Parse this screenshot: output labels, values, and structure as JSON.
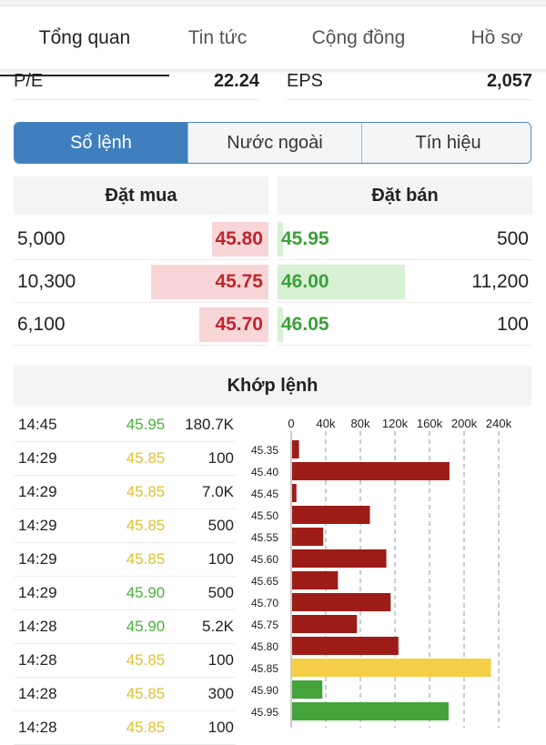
{
  "tabs": [
    {
      "label": "Tổng quan",
      "active": true
    },
    {
      "label": "Tin tức",
      "active": false
    },
    {
      "label": "Cộng đồng",
      "active": false
    },
    {
      "label": "Hồ sơ",
      "active": false
    }
  ],
  "metrics": [
    {
      "label": "P/E",
      "value": "22.24"
    },
    {
      "label": "EPS",
      "value": "2,057"
    }
  ],
  "segments": [
    {
      "label": "Sổ lệnh",
      "active": true
    },
    {
      "label": "Nước ngoài",
      "active": false
    },
    {
      "label": "Tín hiệu",
      "active": false
    }
  ],
  "orderbook": {
    "buy_header": "Đặt mua",
    "sell_header": "Đặt bán",
    "rows": [
      {
        "buy_volume": "5,000",
        "buy_price": "45.80",
        "sell_price": "45.95",
        "sell_volume": "500",
        "buy_volume_num": 5000,
        "sell_volume_num": 500
      },
      {
        "buy_volume": "10,300",
        "buy_price": "45.75",
        "sell_price": "46.00",
        "sell_volume": "11,200",
        "buy_volume_num": 10300,
        "sell_volume_num": 11200
      },
      {
        "buy_volume": "6,100",
        "buy_price": "45.70",
        "sell_price": "46.05",
        "sell_volume": "100",
        "buy_volume_num": 6100,
        "sell_volume_num": 100
      }
    ]
  },
  "trades": {
    "title": "Khớp lệnh",
    "rows": [
      {
        "time": "14:45",
        "price": "45.95",
        "volume": "180.7K",
        "color": "#4caf3d"
      },
      {
        "time": "14:29",
        "price": "45.85",
        "volume": "100",
        "color": "#e0c030"
      },
      {
        "time": "14:29",
        "price": "45.85",
        "volume": "7.0K",
        "color": "#e0c030"
      },
      {
        "time": "14:29",
        "price": "45.85",
        "volume": "500",
        "color": "#e0c030"
      },
      {
        "time": "14:29",
        "price": "45.85",
        "volume": "100",
        "color": "#e0c030"
      },
      {
        "time": "14:29",
        "price": "45.90",
        "volume": "500",
        "color": "#4caf3d"
      },
      {
        "time": "14:28",
        "price": "45.90",
        "volume": "5.2K",
        "color": "#4caf3d"
      },
      {
        "time": "14:28",
        "price": "45.85",
        "volume": "100",
        "color": "#e0c030"
      },
      {
        "time": "14:28",
        "price": "45.85",
        "volume": "300",
        "color": "#e0c030"
      },
      {
        "time": "14:28",
        "price": "45.85",
        "volume": "100",
        "color": "#e0c030"
      }
    ]
  },
  "colors": {
    "buy": "#c0262d",
    "sell": "#3ba03a",
    "bar_down": "#9e1c17",
    "bar_ref": "#f4cf45",
    "bar_up": "#44a33a",
    "accent": "#3f7fbe"
  },
  "chart_data": {
    "type": "bar",
    "orientation": "horizontal",
    "title": "",
    "xlabel": "",
    "ylabel": "",
    "xlim": [
      0,
      240000
    ],
    "x_ticks": [
      "0",
      "40k",
      "80k",
      "120k",
      "160k",
      "200k",
      "240k"
    ],
    "x_tick_values": [
      0,
      40000,
      80000,
      120000,
      160000,
      200000,
      240000
    ],
    "grid": true,
    "categories": [
      "45.35",
      "45.40",
      "45.45",
      "45.50",
      "45.55",
      "45.60",
      "45.65",
      "45.70",
      "45.75",
      "45.80",
      "45.85",
      "45.90",
      "45.95"
    ],
    "values": [
      8000,
      182000,
      5000,
      90000,
      36000,
      109000,
      53000,
      114000,
      75000,
      123000,
      230000,
      35000,
      181000
    ],
    "bar_colors": [
      "down",
      "down",
      "down",
      "down",
      "down",
      "down",
      "down",
      "down",
      "down",
      "down",
      "ref",
      "up",
      "up"
    ]
  }
}
